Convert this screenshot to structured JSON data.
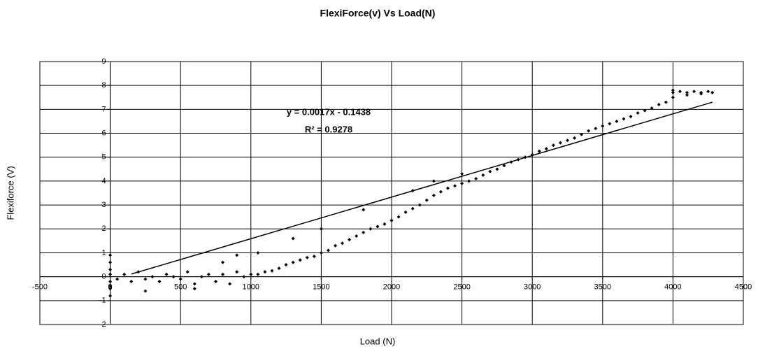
{
  "chart_data": {
    "type": "scatter",
    "title": "FlexiForce(v) Vs Load(N)",
    "x_label": "Load (N)",
    "y_label": "Flexiforce (V)",
    "annotations": [
      "y = 0.0017x - 0.1438",
      "R² = 0.9278"
    ],
    "xlim": [
      -500,
      4500
    ],
    "xticks": [
      -500,
      0,
      500,
      1000,
      1500,
      2000,
      2500,
      3000,
      3500,
      4000,
      4500
    ],
    "ylim": [
      -2,
      9
    ],
    "yticks": [
      -2,
      -1,
      0,
      1,
      2,
      3,
      4,
      5,
      6,
      7,
      8,
      9
    ],
    "grid": true,
    "color": "#000000",
    "x": [
      0,
      0,
      0,
      0,
      0,
      0,
      0,
      0,
      50,
      100,
      150,
      200,
      250,
      300,
      350,
      400,
      450,
      500,
      550,
      600,
      650,
      700,
      750,
      800,
      850,
      900,
      950,
      1000,
      800,
      900,
      1050,
      1300,
      1500,
      1800,
      2150,
      2300,
      2500,
      250,
      600,
      1050,
      1100,
      1150,
      1200,
      1250,
      1300,
      1350,
      1400,
      1450,
      1500,
      1550,
      1600,
      1650,
      1700,
      1750,
      1800,
      1850,
      1900,
      1950,
      2000,
      2050,
      2100,
      2150,
      2200,
      2250,
      2300,
      2350,
      2400,
      2450,
      2500,
      2550,
      2600,
      2650,
      2700,
      2750,
      2800,
      2850,
      2900,
      2950,
      3000,
      3050,
      3100,
      3150,
      3200,
      3250,
      3300,
      3350,
      3400,
      3450,
      3500,
      3550,
      3600,
      3650,
      3700,
      3750,
      3800,
      3850,
      3900,
      3950,
      4000,
      4000,
      4050,
      4100,
      4150,
      4200,
      4250,
      4280,
      4100,
      4200,
      4000
    ],
    "values": [
      0.9,
      0.6,
      0.3,
      -0.2,
      -0.5,
      -0.8,
      0.1,
      -0.4,
      -0.1,
      0.1,
      -0.2,
      0.2,
      -0.1,
      0,
      -0.2,
      0.1,
      0,
      -0.1,
      0.2,
      -0.3,
      0,
      0.1,
      -0.2,
      0.1,
      -0.3,
      0.2,
      0,
      0.1,
      0.6,
      0.9,
      1.0,
      1.6,
      2.0,
      2.8,
      3.6,
      4.0,
      4.3,
      -0.6,
      -0.5,
      0.1,
      0.2,
      0.25,
      0.35,
      0.5,
      0.6,
      0.7,
      0.8,
      0.85,
      1.0,
      1.1,
      1.3,
      1.4,
      1.55,
      1.7,
      1.85,
      2.0,
      2.1,
      2.2,
      2.35,
      2.5,
      2.7,
      2.85,
      3.0,
      3.2,
      3.4,
      3.55,
      3.7,
      3.8,
      3.9,
      4.0,
      4.1,
      4.25,
      4.4,
      4.5,
      4.65,
      4.8,
      4.9,
      5.0,
      5.1,
      5.25,
      5.35,
      5.5,
      5.6,
      5.7,
      5.8,
      5.95,
      6.1,
      6.2,
      6.3,
      6.4,
      6.5,
      6.6,
      6.7,
      6.85,
      6.95,
      7.05,
      7.2,
      7.3,
      7.5,
      7.7,
      7.75,
      7.7,
      7.75,
      7.7,
      7.75,
      7.7,
      7.6,
      7.65,
      7.8
    ],
    "trendline": {
      "x": [
        150,
        4280
      ],
      "values": [
        0.11,
        7.3
      ]
    }
  }
}
